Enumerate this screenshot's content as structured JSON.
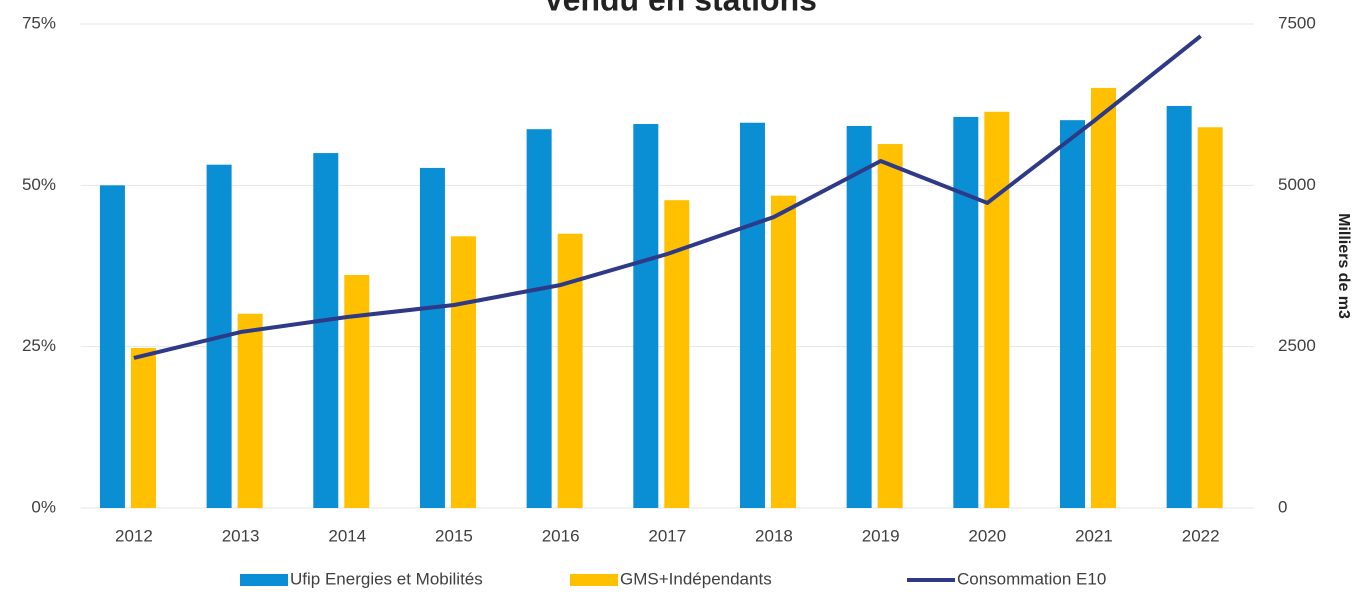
{
  "chart_data": {
    "type": "bar_line",
    "title": "Vendu en stations",
    "y2_label": "Milliers de m3",
    "categories": [
      "2012",
      "2013",
      "2014",
      "2015",
      "2016",
      "2017",
      "2018",
      "2019",
      "2020",
      "2021",
      "2022"
    ],
    "series": [
      {
        "name": "Ufip Energies et Mobilités",
        "type": "bar",
        "color": "#0a8fd4",
        "values": [
          50,
          53.2,
          55,
          52.7,
          58.7,
          59.5,
          59.7,
          59.2,
          60.6,
          60.1,
          62.3
        ]
      },
      {
        "name": "GMS+Indépendants",
        "type": "bar",
        "color": "#ffc000",
        "values": [
          24.8,
          30.1,
          36.1,
          42.1,
          42.5,
          47.7,
          48.4,
          56.4,
          61.4,
          65.1,
          59.0
        ]
      },
      {
        "name": "Consommation E10",
        "type": "line",
        "axis": "y2",
        "color": "#2e3a87",
        "values": [
          2325,
          2727,
          2960,
          3146,
          3456,
          3936,
          4510,
          5377,
          4727,
          5997,
          7314
        ]
      }
    ],
    "ylim": [
      0,
      75
    ],
    "yticks": [
      {
        "value": 0,
        "label": "0%"
      },
      {
        "value": 25,
        "label": "25%"
      },
      {
        "value": 50,
        "label": "50%"
      },
      {
        "value": 75,
        "label": "75%"
      }
    ],
    "y2lim": [
      0,
      7500
    ],
    "y2ticks": [
      0,
      2500,
      5000,
      7500
    ],
    "grid": true,
    "legend": "bottom"
  }
}
